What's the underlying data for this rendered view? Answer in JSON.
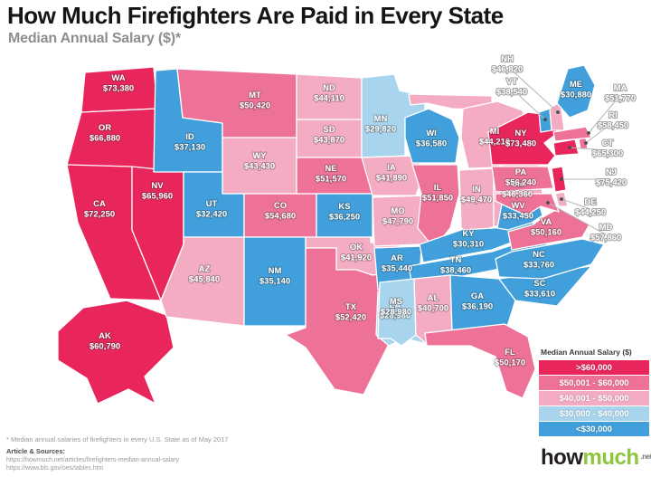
{
  "title": "How Much Firefighters Are Paid in Every State",
  "subtitle": "Median Annual Salary ($)*",
  "map_colors": {
    "b1": "#E9265C",
    "b2": "#EE7298",
    "b3": "#F3ACC2",
    "b4": "#41A0DB",
    "b5": "#A9D4EE"
  },
  "legend": {
    "title": "Median Annual Salary ($)",
    "bands": [
      {
        "label": ">$60,000",
        "color": "#E9265C"
      },
      {
        "label": "$50,001 - $60,000",
        "color": "#EE7298"
      },
      {
        "label": "$40,001 - $50,000",
        "color": "#F3ACC2"
      },
      {
        "label": "$30,000 - $40,000",
        "color": "#A9D4EE"
      },
      {
        "label": "<$30,000",
        "color": "#41A0DB"
      }
    ]
  },
  "chart_data": {
    "type": "heatmap",
    "subtype": "us-choropleth",
    "title": "How Much Firefighters Are Paid in Every State",
    "subtitle": "Median Annual Salary ($)*",
    "unit": "USD per year",
    "legend_bands": [
      ">$60,000",
      "$50,001 - $60,000",
      "$40,001 - $50,000",
      "$30,000 - $40,000",
      "<$30,000"
    ],
    "states": [
      {
        "abbr": "WA",
        "label": "$73,380",
        "value": 73380,
        "band": "b1"
      },
      {
        "abbr": "OR",
        "label": "$66,880",
        "value": 66880,
        "band": "b1"
      },
      {
        "abbr": "CA",
        "label": "$72,250",
        "value": 72250,
        "band": "b1"
      },
      {
        "abbr": "NV",
        "label": "$65,960",
        "value": 65960,
        "band": "b1"
      },
      {
        "abbr": "AK",
        "label": "$60,790",
        "value": 60790,
        "band": "b1"
      },
      {
        "abbr": "ID",
        "label": "$37,130",
        "value": 37130,
        "band": "b4"
      },
      {
        "abbr": "MT",
        "label": "$50,420",
        "value": 50420,
        "band": "b2"
      },
      {
        "abbr": "WY",
        "label": "$43,430",
        "value": 43430,
        "band": "b3"
      },
      {
        "abbr": "UT",
        "label": "$32,420",
        "value": 32420,
        "band": "b4"
      },
      {
        "abbr": "CO",
        "label": "$54,680",
        "value": 54680,
        "band": "b2"
      },
      {
        "abbr": "AZ",
        "label": "$45,840",
        "value": 45840,
        "band": "b3"
      },
      {
        "abbr": "NM",
        "label": "$35,140",
        "value": 35140,
        "band": "b4"
      },
      {
        "abbr": "ND",
        "label": "$44,110",
        "value": 44110,
        "band": "b3"
      },
      {
        "abbr": "SD",
        "label": "$43,870",
        "value": 43870,
        "band": "b3"
      },
      {
        "abbr": "NE",
        "label": "$51,570",
        "value": 51570,
        "band": "b2"
      },
      {
        "abbr": "KS",
        "label": "$36,250",
        "value": 36250,
        "band": "b4"
      },
      {
        "abbr": "OK",
        "label": "$41,920",
        "value": 41920,
        "band": "b3"
      },
      {
        "abbr": "TX",
        "label": "$52,420",
        "value": 52420,
        "band": "b2"
      },
      {
        "abbr": "MN",
        "label": "$29,820",
        "value": 29820,
        "band": "b5"
      },
      {
        "abbr": "IA",
        "label": "$41,890",
        "value": 41890,
        "band": "b3"
      },
      {
        "abbr": "MO",
        "label": "$47,790",
        "value": 47790,
        "band": "b3"
      },
      {
        "abbr": "AR",
        "label": "$35,440",
        "value": 35440,
        "band": "b4"
      },
      {
        "abbr": "LA",
        "label": "$28,980",
        "value": 28980,
        "band": "b5"
      },
      {
        "abbr": "WI",
        "label": "$36,580",
        "value": 36580,
        "band": "b4"
      },
      {
        "abbr": "IL",
        "label": "$51,850",
        "value": 51850,
        "band": "b2"
      },
      {
        "abbr": "MI",
        "label": "$44,210",
        "value": 44210,
        "band": "b3"
      },
      {
        "abbr": "IN",
        "label": "$49,470",
        "value": 49470,
        "band": "b3"
      },
      {
        "abbr": "OH",
        "label": "$46,360",
        "value": 46360,
        "band": "b3"
      },
      {
        "abbr": "KY",
        "label": "$30,310",
        "value": 30310,
        "band": "b4"
      },
      {
        "abbr": "TN",
        "label": "$38,460",
        "value": 38460,
        "band": "b4"
      },
      {
        "abbr": "MS",
        "label": "$28,980",
        "value": 28980,
        "band": "b5"
      },
      {
        "abbr": "AL",
        "label": "$40,700",
        "value": 40700,
        "band": "b3"
      },
      {
        "abbr": "GA",
        "label": "$36,190",
        "value": 36190,
        "band": "b4"
      },
      {
        "abbr": "FL",
        "label": "$50,170",
        "value": 50170,
        "band": "b2"
      },
      {
        "abbr": "SC",
        "label": "$33,610",
        "value": 33610,
        "band": "b4"
      },
      {
        "abbr": "NC",
        "label": "$33,760",
        "value": 33760,
        "band": "b4"
      },
      {
        "abbr": "VA",
        "label": "$50,160",
        "value": 50160,
        "band": "b2"
      },
      {
        "abbr": "WV",
        "label": "$33,450",
        "value": 33450,
        "band": "b4"
      },
      {
        "abbr": "MD",
        "label": "$57,860",
        "value": 57860,
        "band": "b2"
      },
      {
        "abbr": "DE",
        "label": "$44,250",
        "value": 44250,
        "band": "b3"
      },
      {
        "abbr": "NJ",
        "label": "$75,420",
        "value": 75420,
        "band": "b1"
      },
      {
        "abbr": "PA",
        "label": "$56,240",
        "value": 56240,
        "band": "b2"
      },
      {
        "abbr": "NY",
        "label": "$73,480",
        "value": 73480,
        "band": "b1"
      },
      {
        "abbr": "CT",
        "label": "$65,300",
        "value": 65300,
        "band": "b1"
      },
      {
        "abbr": "RI",
        "label": "$58,450",
        "value": 58450,
        "band": "b2"
      },
      {
        "abbr": "MA",
        "label": "$51,770",
        "value": 51770,
        "band": "b2"
      },
      {
        "abbr": "VT",
        "label": "$38,540",
        "value": 38540,
        "band": "b4"
      },
      {
        "abbr": "NH",
        "label": "$46,820",
        "value": 46820,
        "band": "b3"
      },
      {
        "abbr": "ME",
        "label": "$30,880",
        "value": 30880,
        "band": "b4"
      }
    ]
  },
  "footnote": "* Median annual salaries of firefighters in every U.S. State as of May 2017",
  "sources_label": "Article & Sources:",
  "sources": [
    "https://howmuch.net/articles/firefighters-median-annual-salary",
    "https://www.bls.gov/oes/tables.htm"
  ],
  "logo": {
    "how": "how",
    "much": "much",
    "net": ".net"
  }
}
